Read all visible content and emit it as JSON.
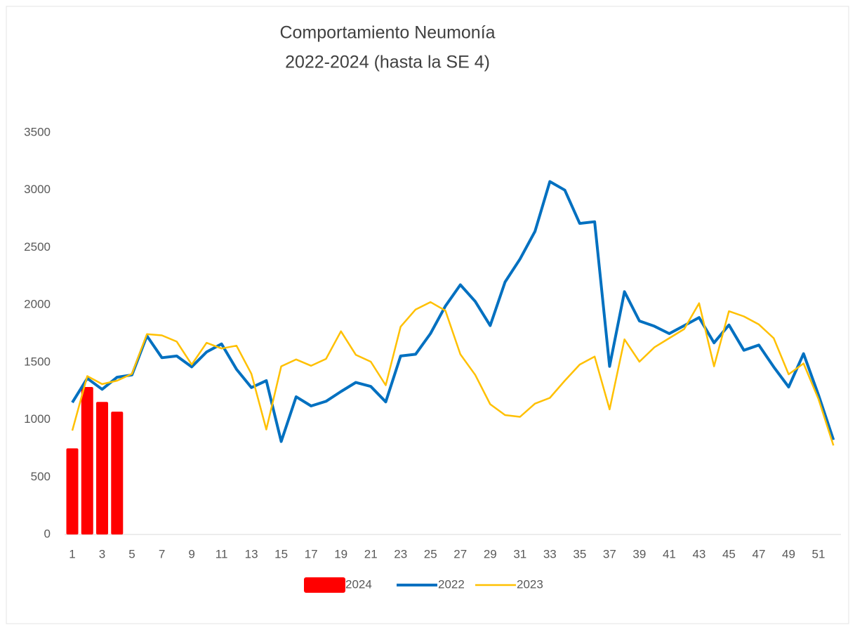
{
  "chart_data": {
    "type": "bar-line",
    "title": [
      "Comportamiento Neumonía",
      "2022-2024 (hasta la SE 4)"
    ],
    "categories": [
      1,
      null,
      3,
      null,
      5,
      null,
      7,
      null,
      9,
      null,
      11,
      null,
      13,
      null,
      15,
      null,
      17,
      null,
      19,
      null,
      21,
      null,
      23,
      null,
      25,
      null,
      27,
      null,
      29,
      null,
      31,
      null,
      33,
      null,
      35,
      null,
      37,
      null,
      39,
      null,
      41,
      null,
      43,
      null,
      45,
      null,
      47,
      null,
      49,
      null,
      51,
      null
    ],
    "ylim": [
      0,
      3500
    ],
    "yticks": [
      0,
      500,
      1000,
      1500,
      2000,
      2500,
      3000,
      3500
    ],
    "grid": false,
    "legend": "bottom",
    "series": [
      {
        "name": "2024",
        "type": "bar",
        "color": "#ff0000",
        "values": [
          750,
          1285,
          1155,
          1070,
          null,
          null,
          null,
          null,
          null,
          null,
          null,
          null,
          null,
          null,
          null,
          null,
          null,
          null,
          null,
          null,
          null,
          null,
          null,
          null,
          null,
          null,
          null,
          null,
          null,
          null,
          null,
          null,
          null,
          null,
          null,
          null,
          null,
          null,
          null,
          null,
          null,
          null,
          null,
          null,
          null,
          null,
          null,
          null,
          null,
          null,
          null,
          null
        ]
      },
      {
        "name": "2022",
        "type": "line",
        "color": "#0070c0",
        "values": [
          1150,
          1360,
          1265,
          1370,
          1390,
          1730,
          1540,
          1555,
          1460,
          1590,
          1660,
          1440,
          1280,
          1340,
          810,
          1200,
          1120,
          1160,
          1245,
          1325,
          1290,
          1155,
          1555,
          1570,
          1750,
          1990,
          2175,
          2030,
          1820,
          2200,
          2400,
          2640,
          3075,
          3000,
          2710,
          2725,
          1465,
          2115,
          1860,
          1815,
          1750,
          1820,
          1890,
          1670,
          1825,
          1605,
          1650,
          1460,
          1285,
          1575,
          1215,
          825
        ]
      },
      {
        "name": "2023",
        "type": "line",
        "color": "#ffc000",
        "values": [
          905,
          1380,
          1310,
          1340,
          1400,
          1745,
          1735,
          1680,
          1480,
          1670,
          1620,
          1645,
          1400,
          915,
          1465,
          1525,
          1470,
          1530,
          1770,
          1565,
          1505,
          1300,
          1810,
          1960,
          2025,
          1950,
          1570,
          1390,
          1135,
          1040,
          1025,
          1140,
          1190,
          1340,
          1480,
          1550,
          1090,
          1700,
          1505,
          1630,
          1710,
          1790,
          2015,
          1465,
          1945,
          1900,
          1830,
          1710,
          1395,
          1490,
          1180,
          775
        ]
      }
    ]
  }
}
